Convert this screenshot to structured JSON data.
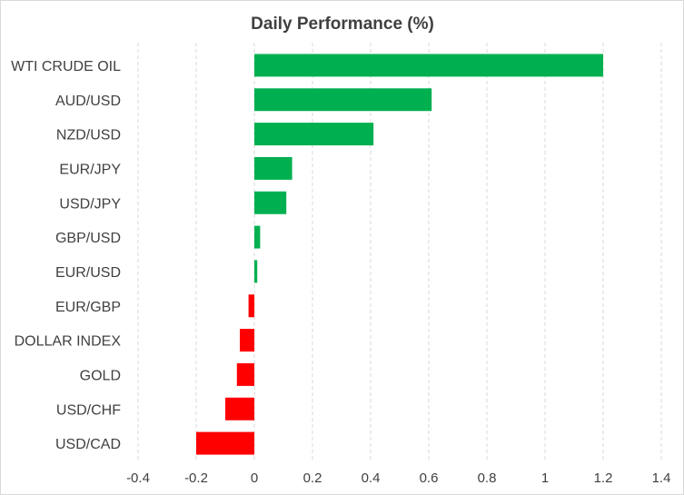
{
  "chart_data": {
    "type": "bar",
    "orientation": "horizontal",
    "title": "Daily Performance (%)",
    "xlabel": "",
    "ylabel": "",
    "categories": [
      "WTI CRUDE OIL",
      "AUD/USD",
      "NZD/USD",
      "EUR/JPY",
      "USD/JPY",
      "GBP/USD",
      "EUR/USD",
      "EUR/GBP",
      "DOLLAR INDEX",
      "GOLD",
      "USD/CHF",
      "USD/CAD"
    ],
    "values": [
      1.2,
      0.61,
      0.41,
      0.13,
      0.11,
      0.02,
      0.01,
      -0.02,
      -0.05,
      -0.06,
      -0.1,
      -0.2
    ],
    "xlim": [
      -0.4,
      1.4
    ],
    "xticks": [
      -0.4,
      -0.2,
      0,
      0.2,
      0.4,
      0.6,
      0.8,
      1,
      1.2,
      1.4
    ],
    "xtick_labels": [
      "-0.4",
      "-0.2",
      "0",
      "0.2",
      "0.4",
      "0.6",
      "0.8",
      "1",
      "1.2",
      "1.4"
    ],
    "grid": "vertical dashed",
    "legend": "none",
    "colors": {
      "positive": "#00b050",
      "negative": "#ff0000",
      "grid": "#d9d9d9"
    }
  }
}
